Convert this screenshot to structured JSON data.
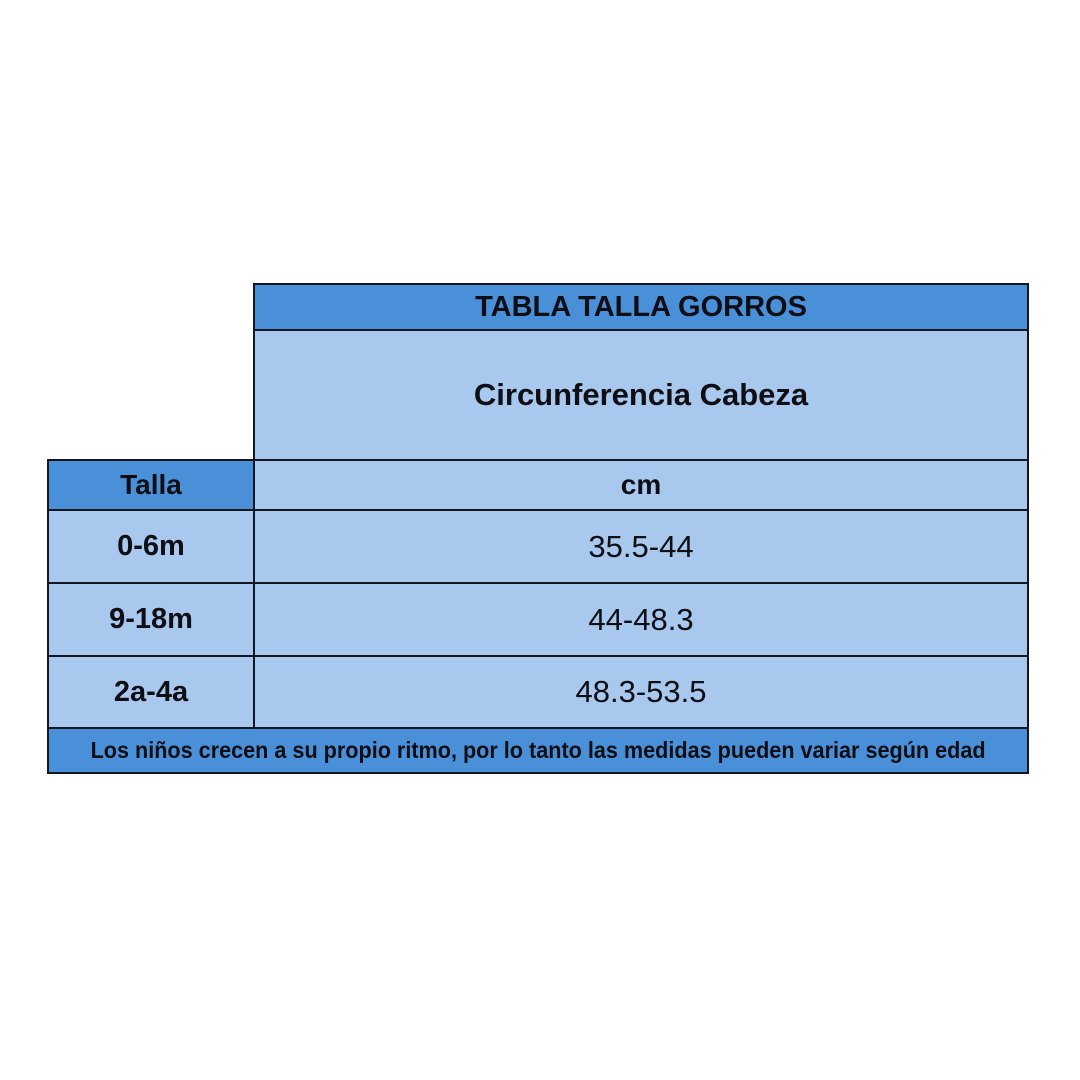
{
  "chart_data": {
    "type": "table",
    "title": "TABLA TALLA GORROS",
    "subtitle": "Circunferencia Cabeza",
    "columns": [
      "Talla",
      "cm"
    ],
    "rows": [
      [
        "0-6m",
        "35.5-44"
      ],
      [
        "9-18m",
        "44-48.3"
      ],
      [
        "2a-4a",
        "48.3-53.5"
      ]
    ],
    "footnote": "Los niños crecen a su propio ritmo, por lo tanto las medidas pueden variar según edad",
    "layout_hints": {
      "header_rows_span_right_column_only": true,
      "footnote_spans_full_width": true,
      "grid": "on"
    }
  },
  "colors": {
    "header_blue": "#4a90d9",
    "cell_blue": "#a8c8ed",
    "border": "#161622",
    "text": "#0e0e14",
    "canvas": "#ffffff"
  }
}
